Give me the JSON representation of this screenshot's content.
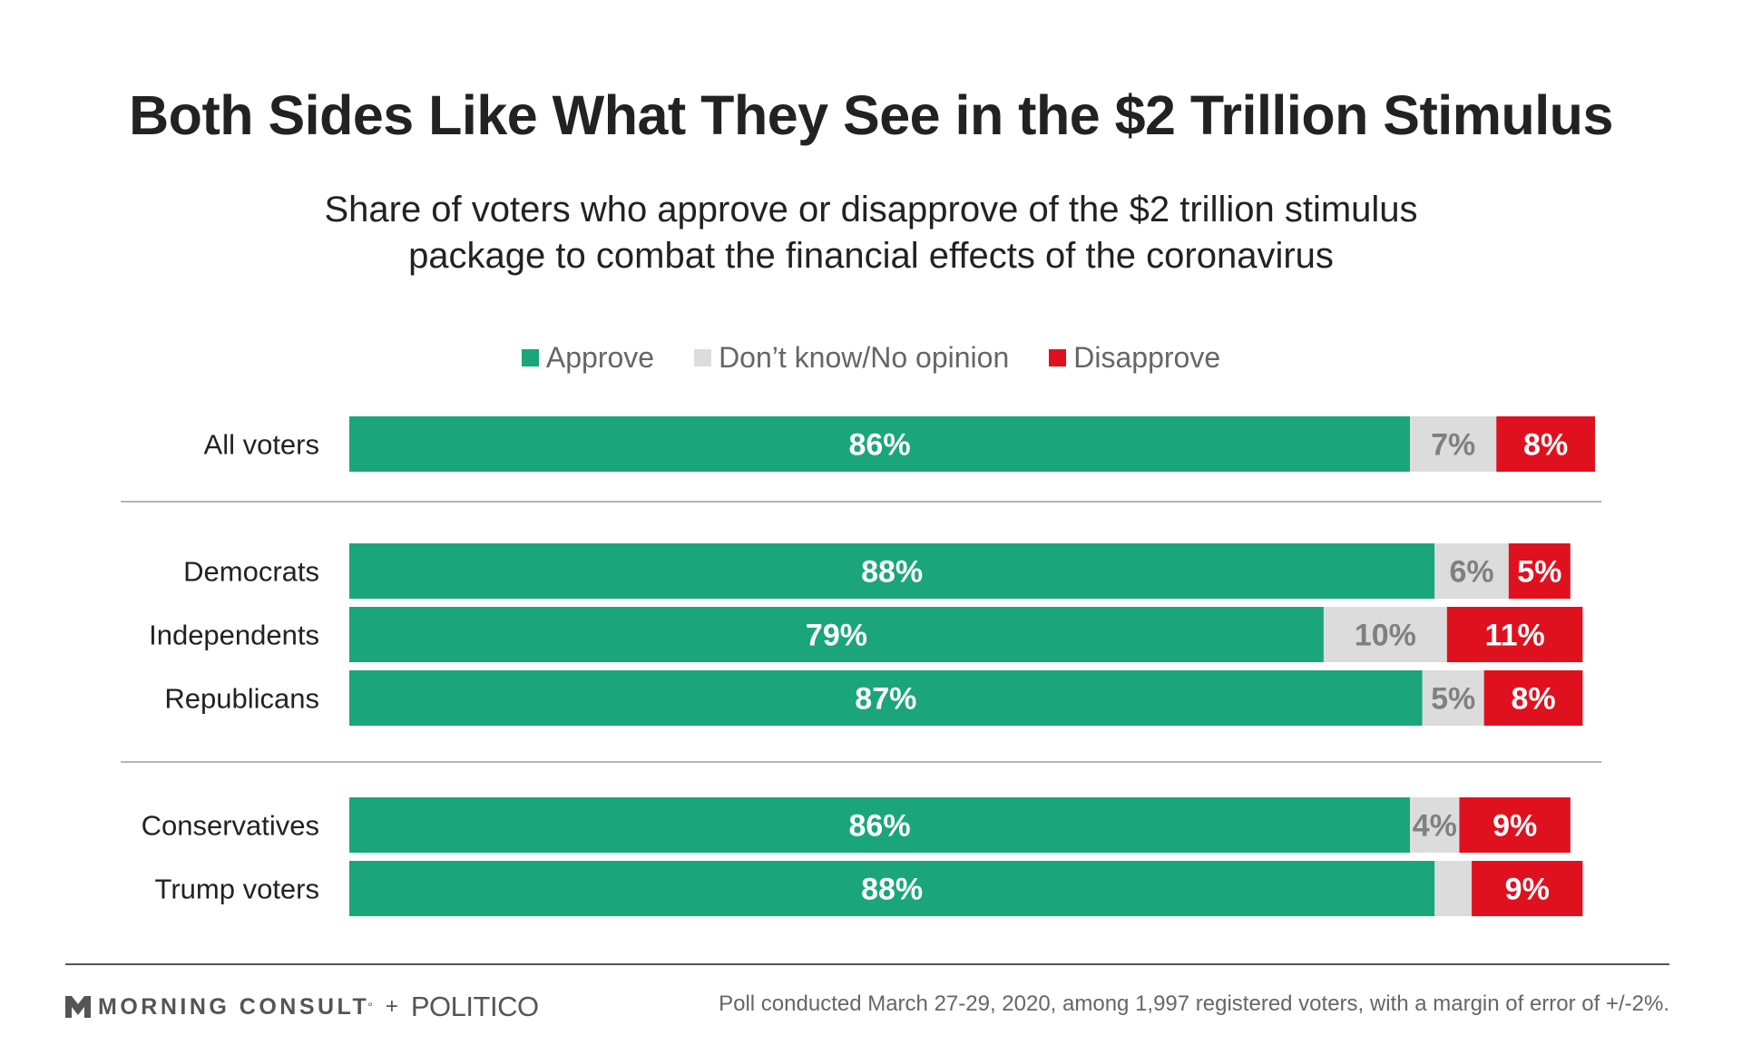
{
  "chart_data": {
    "type": "bar",
    "orientation": "horizontal",
    "stacked": true,
    "title": "Both Sides Like What They See in the $2 Trillion Stimulus",
    "subtitle_lines": [
      "Share of voters who approve or disapprove of the $2 trillion stimulus",
      "package to combat the financial effects of the coronavirus"
    ],
    "legend_position": "top-center",
    "legend": [
      "Approve",
      "Don’t know/No opinion",
      "Disapprove"
    ],
    "categories": [
      "All voters",
      "Democrats",
      "Independents",
      "Republicans",
      "Conservatives",
      "Trump voters"
    ],
    "groups": [
      [
        "All voters"
      ],
      [
        "Democrats",
        "Independents",
        "Republicans"
      ],
      [
        "Conservatives",
        "Trump voters"
      ]
    ],
    "series": [
      {
        "name": "Approve",
        "color": "#1ba57a",
        "label_color": "#ffffff",
        "values": [
          86,
          88,
          79,
          87,
          86,
          88
        ],
        "labels": [
          "86%",
          "88%",
          "79%",
          "87%",
          "86%",
          "88%"
        ]
      },
      {
        "name": "Don’t know/No opinion",
        "color": "#dcdcdc",
        "label_color": "#808080",
        "values": [
          7,
          6,
          10,
          5,
          4,
          3
        ],
        "labels": [
          "7%",
          "6%",
          "10%",
          "5%",
          "4%",
          ""
        ]
      },
      {
        "name": "Disapprove",
        "color": "#e0111e",
        "label_color": "#ffffff",
        "values": [
          8,
          5,
          11,
          8,
          9,
          9
        ],
        "labels": [
          "8%",
          "5%",
          "11%",
          "8%",
          "9%",
          "9%"
        ]
      }
    ],
    "xlim": [
      0,
      101
    ],
    "grid": false
  },
  "footer": {
    "brand": "MORNING CONSULT",
    "brand_mark": "°",
    "plus": "+",
    "partner": "POLITICO",
    "note": "Poll conducted March 27-29, 2020, among 1,997 registered voters, with a margin of error of +/-2%."
  }
}
